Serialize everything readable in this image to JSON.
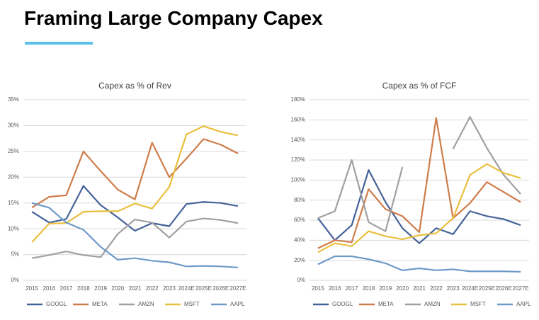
{
  "title": "Framing Large Company Capex",
  "chart_data": [
    {
      "type": "line",
      "title": "Capex as % of Rev",
      "categories": [
        "2015",
        "2016",
        "2017",
        "2018",
        "2019",
        "2020",
        "2021",
        "2022",
        "2023",
        "2024E",
        "2025E",
        "2026E",
        "2027E"
      ],
      "ylim": [
        0,
        35
      ],
      "yticks": [
        {
          "value": 0,
          "label": "0%"
        },
        {
          "value": 5,
          "label": "5%"
        },
        {
          "value": 10,
          "label": "10%"
        },
        {
          "value": 15,
          "label": "15%"
        },
        {
          "value": 20,
          "label": "20%"
        },
        {
          "value": 25,
          "label": "25%"
        },
        {
          "value": 30,
          "label": "30%"
        },
        {
          "value": 35,
          "label": "35%"
        }
      ],
      "grid": true,
      "legend": "bottom",
      "series": [
        {
          "name": "GOOGL",
          "color": "#44629a",
          "values": [
            13.3,
            11.2,
            11.9,
            18.3,
            14.6,
            12.2,
            9.6,
            11.1,
            10.5,
            14.8,
            15.2,
            15.0,
            14.4
          ]
        },
        {
          "name": "META",
          "color": "#cf7c4a",
          "values": [
            14.1,
            16.2,
            16.5,
            25.0,
            21.2,
            17.6,
            15.7,
            26.7,
            20.0,
            23.6,
            27.4,
            26.3,
            24.6
          ]
        },
        {
          "name": "AMZN",
          "color": "#a0a0a0",
          "values": [
            4.3,
            4.9,
            5.6,
            4.9,
            4.5,
            9.0,
            11.8,
            11.2,
            8.3,
            11.4,
            12.0,
            11.7,
            11.1
          ]
        },
        {
          "name": "MSFT",
          "color": "#e9bf3e",
          "values": [
            7.4,
            11.0,
            11.1,
            13.3,
            13.4,
            13.4,
            14.9,
            13.9,
            18.1,
            28.3,
            29.9,
            28.8,
            28.1
          ]
        },
        {
          "name": "AAPL",
          "color": "#6d9ac8",
          "values": [
            15.0,
            14.1,
            11.2,
            9.8,
            6.5,
            4.0,
            4.3,
            3.8,
            3.5,
            2.7,
            2.8,
            2.7,
            2.5
          ]
        }
      ]
    },
    {
      "type": "line",
      "title": "Capex as % of FCF",
      "categories": [
        "2015",
        "2016",
        "2017",
        "2018",
        "2019",
        "2020",
        "2021",
        "2022",
        "2023",
        "2024E",
        "2025E",
        "2026E",
        "2027E"
      ],
      "ylim": [
        0,
        180
      ],
      "yticks": [
        {
          "value": 0,
          "label": "0%"
        },
        {
          "value": 20,
          "label": "20%"
        },
        {
          "value": 40,
          "label": "40%"
        },
        {
          "value": 60,
          "label": "60%"
        },
        {
          "value": 80,
          "label": "80%"
        },
        {
          "value": 100,
          "label": "100%"
        },
        {
          "value": 120,
          "label": "120%"
        },
        {
          "value": 140,
          "label": "140%"
        },
        {
          "value": 160,
          "label": "160%"
        },
        {
          "value": 180,
          "label": "180%"
        }
      ],
      "grid": true,
      "legend": "bottom",
      "series": [
        {
          "name": "GOOGL",
          "color": "#44629a",
          "values": [
            62,
            40,
            55,
            110,
            78,
            52,
            37,
            52,
            46,
            69,
            64,
            61,
            55
          ]
        },
        {
          "name": "META",
          "color": "#cf7c4a",
          "values": [
            32,
            40,
            38,
            91,
            71,
            64,
            48,
            162,
            62,
            77,
            98,
            88,
            78
          ]
        },
        {
          "name": "AMZN",
          "color": "#a0a0a0",
          "values": [
            62,
            69,
            120,
            58,
            49,
            113,
            null,
            null,
            131,
            163,
            132,
            105,
            86
          ]
        },
        {
          "name": "MSFT",
          "color": "#e9bf3e",
          "values": [
            28,
            37,
            34,
            49,
            44,
            41,
            45,
            47,
            62,
            105,
            116,
            107,
            102
          ]
        },
        {
          "name": "AAPL",
          "color": "#6d9ac8",
          "values": [
            16,
            24,
            24,
            21,
            17,
            10,
            12,
            10,
            11,
            9,
            9,
            9,
            8.5
          ]
        }
      ]
    }
  ]
}
